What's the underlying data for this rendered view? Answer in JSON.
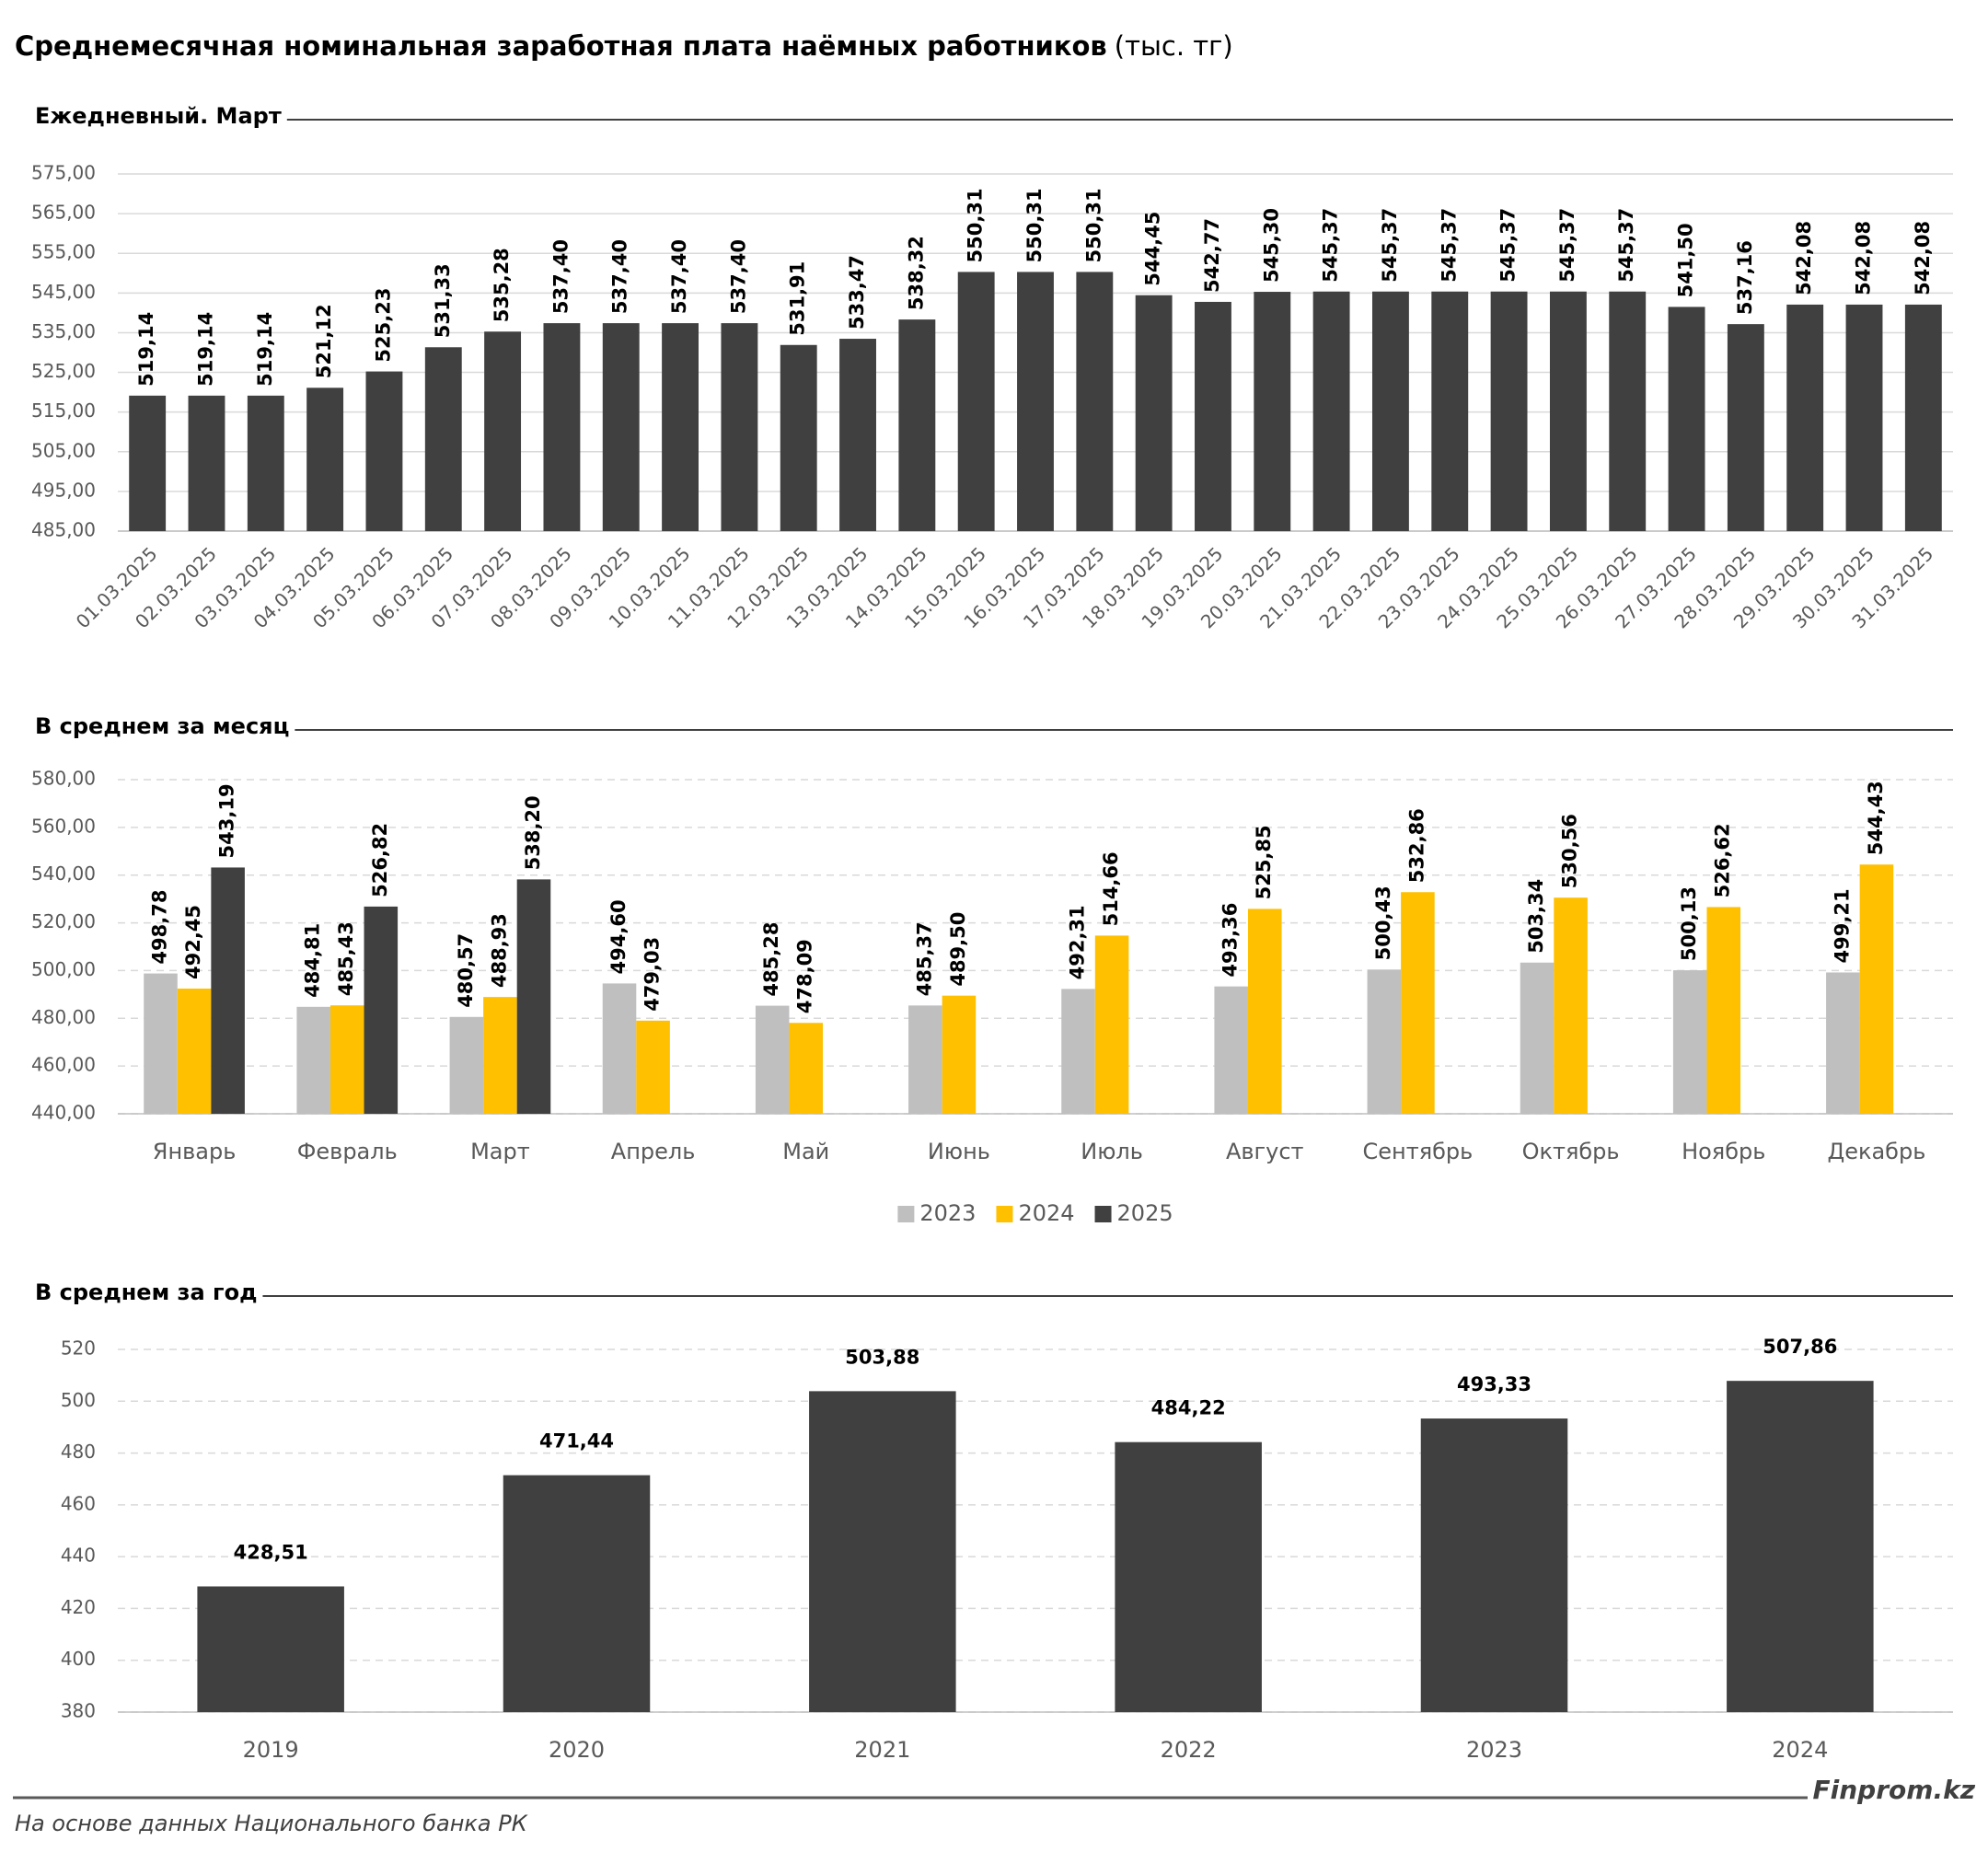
{
  "title": "Среднемесячная номинальная заработная плата наёмных работников",
  "title_unit": "(тыс. тг)",
  "chart_data": [
    {
      "type": "bar",
      "title": "Ежедневный. Март",
      "categories": [
        "01.03.2025",
        "02.03.2025",
        "03.03.2025",
        "04.03.2025",
        "05.03.2025",
        "06.03.2025",
        "07.03.2025",
        "08.03.2025",
        "09.03.2025",
        "10.03.2025",
        "11.03.2025",
        "12.03.2025",
        "13.03.2025",
        "14.03.2025",
        "15.03.2025",
        "16.03.2025",
        "17.03.2025",
        "18.03.2025",
        "19.03.2025",
        "20.03.2025",
        "21.03.2025",
        "22.03.2025",
        "23.03.2025",
        "24.03.2025",
        "25.03.2025",
        "26.03.2025",
        "27.03.2025",
        "28.03.2025",
        "29.03.2025",
        "30.03.2025",
        "31.03.2025"
      ],
      "values": [
        519.14,
        519.14,
        519.14,
        521.12,
        525.23,
        531.33,
        535.28,
        537.4,
        537.4,
        537.4,
        537.4,
        531.91,
        533.47,
        538.32,
        550.31,
        550.31,
        550.31,
        544.45,
        542.77,
        545.3,
        545.37,
        545.37,
        545.37,
        545.37,
        545.37,
        545.37,
        541.5,
        537.16,
        542.08,
        542.08,
        542.08
      ],
      "value_labels": [
        "519,14",
        "519,14",
        "519,14",
        "521,12",
        "525,23",
        "531,33",
        "535,28",
        "537,40",
        "537,40",
        "537,40",
        "537,40",
        "531,91",
        "533,47",
        "538,32",
        "550,31",
        "550,31",
        "550,31",
        "544,45",
        "542,77",
        "545,30",
        "545,37",
        "545,37",
        "545,37",
        "545,37",
        "545,37",
        "545,37",
        "541,50",
        "537,16",
        "542,08",
        "542,08",
        "542,08"
      ],
      "color": "#404040",
      "ylim": [
        485,
        575
      ],
      "yticks": [
        {
          "value": 485,
          "label": "485,00"
        },
        {
          "value": 495,
          "label": "495,00"
        },
        {
          "value": 505,
          "label": "505,00"
        },
        {
          "value": 515,
          "label": "515,00"
        },
        {
          "value": 525,
          "label": "525,00"
        },
        {
          "value": 535,
          "label": "535,00"
        },
        {
          "value": 545,
          "label": "545,00"
        },
        {
          "value": 555,
          "label": "555,00"
        },
        {
          "value": 565,
          "label": "565,00"
        },
        {
          "value": 575,
          "label": "575,00"
        }
      ],
      "grid": true
    },
    {
      "type": "bar",
      "title": "В среднем за месяц",
      "categories": [
        "Январь",
        "Февраль",
        "Март",
        "Апрель",
        "Май",
        "Июнь",
        "Июль",
        "Август",
        "Сентябрь",
        "Октябрь",
        "Ноябрь",
        "Декабрь"
      ],
      "series": [
        {
          "name": "2023",
          "color": "#bfbfbf",
          "values": [
            498.78,
            484.81,
            480.57,
            494.6,
            485.28,
            485.37,
            492.31,
            493.36,
            500.43,
            503.34,
            500.13,
            499.21
          ],
          "value_labels": [
            "498,78",
            "484,81",
            "480,57",
            "494,60",
            "485,28",
            "485,37",
            "492,31",
            "493,36",
            "500,43",
            "503,34",
            "500,13",
            "499,21"
          ]
        },
        {
          "name": "2024",
          "color": "#ffc000",
          "values": [
            492.45,
            485.43,
            488.93,
            479.03,
            478.09,
            489.5,
            514.66,
            525.85,
            532.86,
            530.56,
            526.62,
            544.43
          ],
          "value_labels": [
            "492,45",
            "485,43",
            "488,93",
            "479,03",
            "478,09",
            "489,50",
            "514,66",
            "525,85",
            "532,86",
            "530,56",
            "526,62",
            "544,43"
          ]
        },
        {
          "name": "2025",
          "color": "#404040",
          "values": [
            543.19,
            526.82,
            538.2,
            null,
            null,
            null,
            null,
            null,
            null,
            null,
            null,
            null
          ],
          "value_labels": [
            "543,19",
            "526,82",
            "538,20",
            null,
            null,
            null,
            null,
            null,
            null,
            null,
            null,
            null
          ]
        }
      ],
      "ylim": [
        440,
        580
      ],
      "yticks": [
        {
          "value": 440,
          "label": "440,00"
        },
        {
          "value": 460,
          "label": "460,00"
        },
        {
          "value": 480,
          "label": "480,00"
        },
        {
          "value": 500,
          "label": "500,00"
        },
        {
          "value": 520,
          "label": "520,00"
        },
        {
          "value": 540,
          "label": "540,00"
        },
        {
          "value": 560,
          "label": "560,00"
        },
        {
          "value": 580,
          "label": "580,00"
        }
      ],
      "grid": true,
      "legend": "bottom"
    },
    {
      "type": "bar",
      "title": "В среднем за год",
      "categories": [
        "2019",
        "2020",
        "2021",
        "2022",
        "2023",
        "2024"
      ],
      "values": [
        428.51,
        471.44,
        503.88,
        484.22,
        493.33,
        507.86
      ],
      "value_labels": [
        "428,51",
        "471,44",
        "503,88",
        "484,22",
        "493,33",
        "507,86"
      ],
      "color": "#404040",
      "ylim": [
        380,
        520
      ],
      "yticks": [
        380,
        400,
        420,
        440,
        460,
        480,
        500,
        520
      ],
      "grid": true
    }
  ],
  "source": "На основе данных Национального банка РК",
  "brand": "Finprom.kz"
}
